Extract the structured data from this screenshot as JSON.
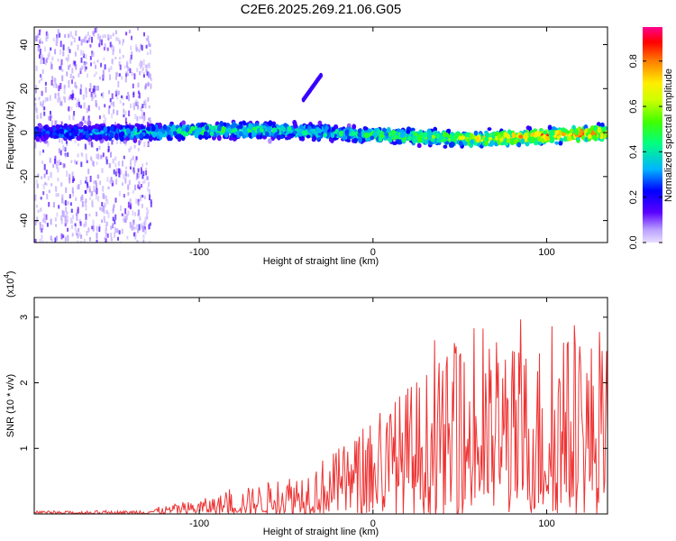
{
  "chart_data": [
    {
      "type": "heatmap",
      "title": "C2E6.2025.269.21.06.G05",
      "xlabel": "Height of straight line (km)",
      "ylabel": "Frequency (Hz)",
      "xlim": [
        -195,
        135
      ],
      "ylim": [
        -50,
        48
      ],
      "xticks": [
        -100,
        0,
        100
      ],
      "xtick_labels": [
        "-100",
        "0",
        "100"
      ],
      "yticks": [
        -40,
        -20,
        0,
        20,
        40
      ],
      "ytick_labels": [
        "-40",
        "-20",
        "0",
        "20",
        "40"
      ],
      "colorbar": {
        "label": "Normalized spectral amplitude",
        "range": [
          0,
          0.95
        ],
        "ticks": [
          0,
          0.2,
          0.4,
          0.6,
          0.8
        ],
        "tick_labels": [
          "0.0",
          "0.2",
          "0.4",
          "0.6",
          "0.8"
        ],
        "colors": [
          "#e8ddff",
          "#5a00ff",
          "#0000ff",
          "#00b4ff",
          "#00ff50",
          "#b4ff00",
          "#ffee00",
          "#ff8000",
          "#ff0000",
          "#ff0090"
        ]
      },
      "band": {
        "description_points_x": [
          -195,
          -130,
          -100,
          -60,
          -30,
          0,
          30,
          60,
          90,
          135
        ],
        "center_freq": [
          0,
          0,
          1,
          1,
          0,
          -1,
          -2,
          -3,
          -2,
          0
        ],
        "peak_amplitude": [
          0.3,
          0.45,
          0.55,
          0.5,
          0.45,
          0.55,
          0.6,
          0.75,
          0.85,
          0.9
        ]
      },
      "noise_region_x": [
        -195,
        -128
      ],
      "secondary_feature": {
        "x": [
          -40,
          -30
        ],
        "freq": [
          15,
          26
        ]
      }
    },
    {
      "type": "line",
      "title": "",
      "xlabel": "Height of straight line (km)",
      "ylabel": "SNR (10 * v/v)",
      "y_multiplier_label": "(x10",
      "y_multiplier_exp": "4",
      "y_multiplier_close": ")",
      "xlim": [
        -195,
        135
      ],
      "ylim": [
        0,
        3.3
      ],
      "xticks": [
        -100,
        0,
        100
      ],
      "xtick_labels": [
        "-100",
        "0",
        "100"
      ],
      "yticks": [
        1,
        2,
        3
      ],
      "ytick_labels": [
        "1",
        "2",
        "3"
      ],
      "series": [
        {
          "name": "SNR",
          "color": "#ee3333",
          "envelope_x": [
            -195,
            -140,
            -120,
            -100,
            -80,
            -60,
            -40,
            -20,
            0,
            20,
            40,
            60,
            80,
            100,
            120,
            135
          ],
          "envelope_y": [
            0.04,
            0.05,
            0.12,
            0.22,
            0.35,
            0.5,
            0.7,
            1.0,
            1.4,
            2.0,
            2.4,
            2.6,
            2.6,
            2.7,
            2.8,
            2.6
          ]
        }
      ]
    }
  ]
}
